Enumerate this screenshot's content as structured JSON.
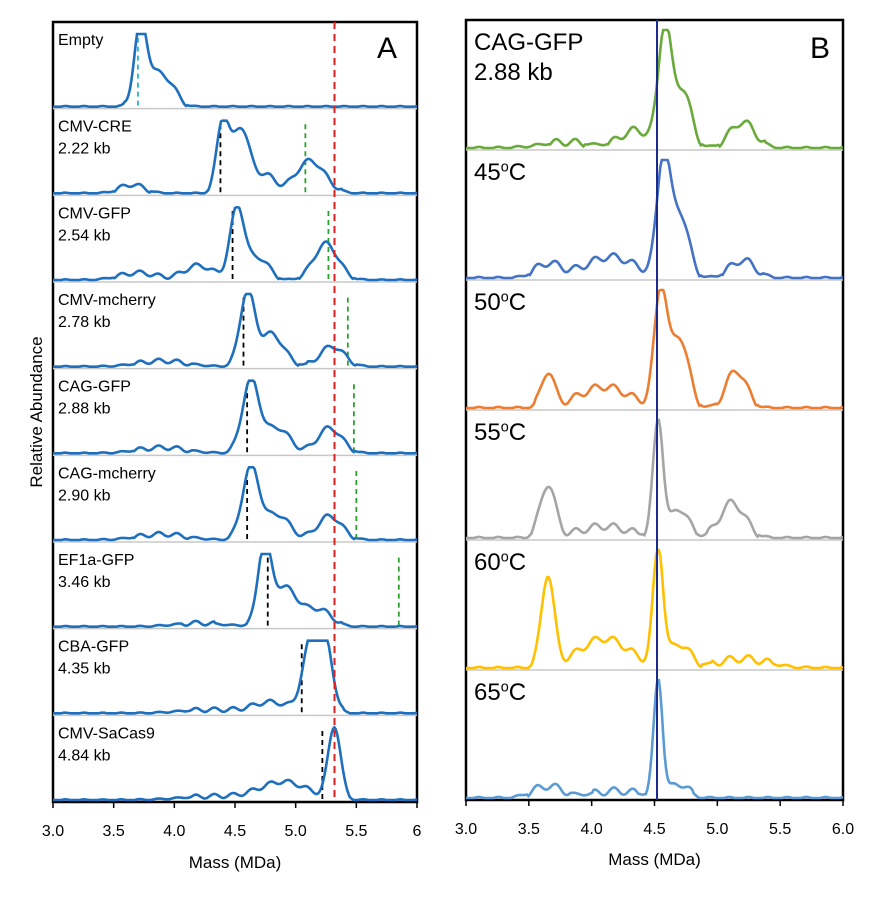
{
  "chart_data": [
    {
      "type": "line",
      "panel_label": "A",
      "xlabel": "Mass (MDa)",
      "ylabel": "Relative Abundance",
      "xlim": [
        3.0,
        6.0
      ],
      "x_ticks": [
        "3.0",
        "3.5",
        "4.0",
        "4.5",
        "5.0",
        "5.5",
        "6"
      ],
      "reference_line": {
        "x": 5.32,
        "color": "#e02020",
        "style": "dashed"
      },
      "line_color": "#1f6fbf",
      "series": [
        {
          "name": "Empty",
          "name_line2": "",
          "marker_x": 3.7,
          "marker_color": "#29b6c9",
          "secondary_marker_x": null,
          "peaks": [
            [
              3.72,
              1.0,
              0.05
            ],
            [
              3.85,
              0.45,
              0.1
            ],
            [
              3.98,
              0.12,
              0.06
            ]
          ]
        },
        {
          "name": "CMV-CRE",
          "name_line2": "2.22 kb",
          "marker_x": 4.38,
          "marker_color": "#000000",
          "secondary_marker_x": 5.08,
          "peaks": [
            [
              3.65,
              0.12,
              0.1
            ],
            [
              4.4,
              1.0,
              0.05
            ],
            [
              4.55,
              0.9,
              0.07
            ],
            [
              4.75,
              0.25,
              0.08
            ],
            [
              5.12,
              0.45,
              0.12
            ]
          ]
        },
        {
          "name": "CMV-GFP",
          "name_line2": "2.54 kb",
          "marker_x": 4.48,
          "marker_color": "#000000",
          "secondary_marker_x": 5.27,
          "peaks": [
            [
              3.7,
              0.1,
              0.15
            ],
            [
              4.2,
              0.2,
              0.12
            ],
            [
              4.52,
              1.0,
              0.06
            ],
            [
              4.7,
              0.3,
              0.08
            ],
            [
              5.25,
              0.5,
              0.1
            ]
          ]
        },
        {
          "name": "CMV-mcherry",
          "name_line2": "2.78 kb",
          "marker_x": 4.57,
          "marker_color": "#000000",
          "secondary_marker_x": 5.43,
          "peaks": [
            [
              3.9,
              0.08,
              0.2
            ],
            [
              4.6,
              1.0,
              0.06
            ],
            [
              4.8,
              0.45,
              0.1
            ],
            [
              5.3,
              0.28,
              0.1
            ]
          ]
        },
        {
          "name": "CAG-GFP",
          "name_line2": "2.88 kb",
          "marker_x": 4.6,
          "marker_color": "#000000",
          "secondary_marker_x": 5.48,
          "peaks": [
            [
              3.9,
              0.08,
              0.2
            ],
            [
              4.63,
              1.0,
              0.07
            ],
            [
              4.85,
              0.35,
              0.1
            ],
            [
              5.28,
              0.35,
              0.1
            ]
          ]
        },
        {
          "name": "CAG-mcherry",
          "name_line2": "2.90 kb",
          "marker_x": 4.6,
          "marker_color": "#000000",
          "secondary_marker_x": 5.5,
          "peaks": [
            [
              3.9,
              0.08,
              0.2
            ],
            [
              4.63,
              1.0,
              0.07
            ],
            [
              4.85,
              0.35,
              0.1
            ],
            [
              5.28,
              0.33,
              0.1
            ]
          ]
        },
        {
          "name": "EF1a-GFP",
          "name_line2": "3.46 kb",
          "marker_x": 4.77,
          "marker_color": "#000000",
          "secondary_marker_x": 5.85,
          "peaks": [
            [
              4.2,
              0.05,
              0.2
            ],
            [
              4.74,
              1.0,
              0.05
            ],
            [
              4.9,
              0.55,
              0.12
            ],
            [
              5.2,
              0.22,
              0.1
            ]
          ]
        },
        {
          "name": "CBA-GFP",
          "name_line2": "4.35 kb",
          "marker_x": 5.05,
          "marker_color": "#000000",
          "secondary_marker_x": null,
          "peaks": [
            [
              4.3,
              0.05,
              0.25
            ],
            [
              4.8,
              0.15,
              0.15
            ],
            [
              5.13,
              1.0,
              0.07
            ],
            [
              5.25,
              0.85,
              0.06
            ]
          ]
        },
        {
          "name": "CMV-SaCas9",
          "name_line2": "4.84 kb",
          "marker_x": 5.22,
          "marker_color": "#000000",
          "secondary_marker_x": null,
          "peaks": [
            [
              4.3,
              0.05,
              0.25
            ],
            [
              4.9,
              0.25,
              0.2
            ],
            [
              5.32,
              1.0,
              0.05
            ]
          ]
        }
      ]
    },
    {
      "type": "line",
      "panel_label": "B",
      "xlabel": "Mass (MDa)",
      "xlim": [
        3.0,
        6.0
      ],
      "x_ticks": [
        "3.0",
        "3.5",
        "4.0",
        "4.5",
        "5.0",
        "5.5",
        "6.0"
      ],
      "reference_line": {
        "x": 4.52,
        "color": "#1a2a8c",
        "style": "solid"
      },
      "series": [
        {
          "name": "CAG-GFP",
          "name_line2": "2.88 kb",
          "color": "#6aaa3a",
          "peaks": [
            [
              3.8,
              0.05,
              0.2
            ],
            [
              4.35,
              0.15,
              0.12
            ],
            [
              4.58,
              1.0,
              0.05
            ],
            [
              4.72,
              0.5,
              0.07
            ],
            [
              5.2,
              0.22,
              0.1
            ]
          ]
        },
        {
          "name": "45°C",
          "name_line2": "",
          "color": "#4472c4",
          "peaks": [
            [
              3.65,
              0.12,
              0.1
            ],
            [
              4.15,
              0.18,
              0.2
            ],
            [
              4.57,
              1.0,
              0.05
            ],
            [
              4.7,
              0.55,
              0.07
            ],
            [
              5.2,
              0.15,
              0.1
            ]
          ]
        },
        {
          "name": "50°C",
          "name_line2": "",
          "color": "#ed7d31",
          "peaks": [
            [
              3.65,
              0.3,
              0.05
            ],
            [
              4.1,
              0.18,
              0.2
            ],
            [
              4.55,
              1.0,
              0.05
            ],
            [
              4.7,
              0.6,
              0.07
            ],
            [
              5.15,
              0.32,
              0.08
            ]
          ]
        },
        {
          "name": "55°C",
          "name_line2": "",
          "color": "#a5a5a5",
          "peaks": [
            [
              3.65,
              0.45,
              0.06
            ],
            [
              4.1,
              0.1,
              0.2
            ],
            [
              4.53,
              1.0,
              0.04
            ],
            [
              4.7,
              0.25,
              0.07
            ],
            [
              5.12,
              0.3,
              0.1
            ]
          ]
        },
        {
          "name": "60°C",
          "name_line2": "",
          "color": "#ffc000",
          "peaks": [
            [
              3.65,
              0.78,
              0.05
            ],
            [
              4.1,
              0.25,
              0.2
            ],
            [
              4.53,
              1.0,
              0.04
            ],
            [
              4.7,
              0.2,
              0.08
            ],
            [
              5.2,
              0.08,
              0.2
            ]
          ]
        },
        {
          "name": "65°C",
          "name_line2": "",
          "color": "#5b9bd5",
          "peaks": [
            [
              3.65,
              0.1,
              0.12
            ],
            [
              4.2,
              0.06,
              0.2
            ],
            [
              4.53,
              1.0,
              0.035
            ],
            [
              4.7,
              0.12,
              0.07
            ]
          ]
        }
      ]
    }
  ]
}
